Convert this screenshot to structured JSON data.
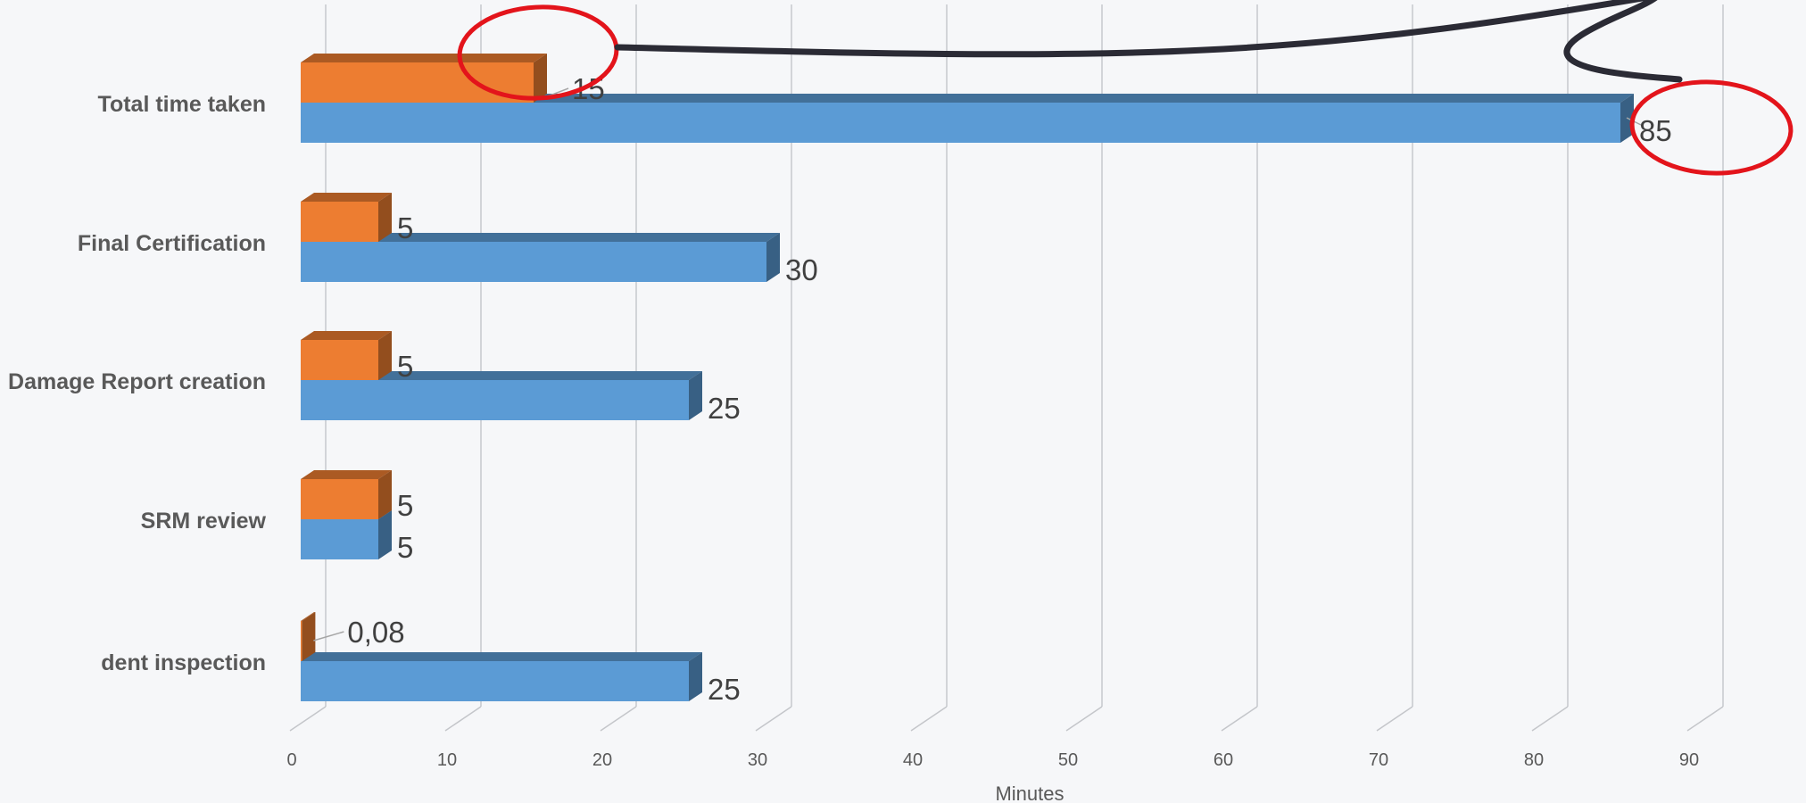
{
  "chart_data": {
    "type": "bar",
    "orientation": "horizontal",
    "style": "3d-clustered",
    "categories": [
      "dent inspection",
      "SRM review",
      "Damage Report creation",
      "Final Certification",
      "Total time taken"
    ],
    "series": [
      {
        "values": [
          25,
          5,
          25,
          30,
          85
        ],
        "labels": [
          "25",
          "5",
          "25",
          "30",
          "85"
        ],
        "color": "#5b9bd5"
      },
      {
        "values": [
          0.08,
          5,
          5,
          5,
          15
        ],
        "labels": [
          "0,08",
          "5",
          "5",
          "5",
          "15"
        ],
        "color": "#ed7d31"
      }
    ],
    "xlim": [
      0,
      90
    ],
    "x_ticks": [
      0,
      10,
      20,
      30,
      40,
      50,
      60,
      70,
      80,
      90
    ],
    "xlabel": "Minutes",
    "grid": true,
    "legend": "none",
    "annotations": [
      {
        "type": "ellipse",
        "around": "Total time taken / 15",
        "color": "#e3141b"
      },
      {
        "type": "ellipse",
        "around": "Total time taken / 85",
        "color": "#e3141b"
      },
      {
        "type": "arrow",
        "color": "#2b2b35"
      }
    ]
  }
}
